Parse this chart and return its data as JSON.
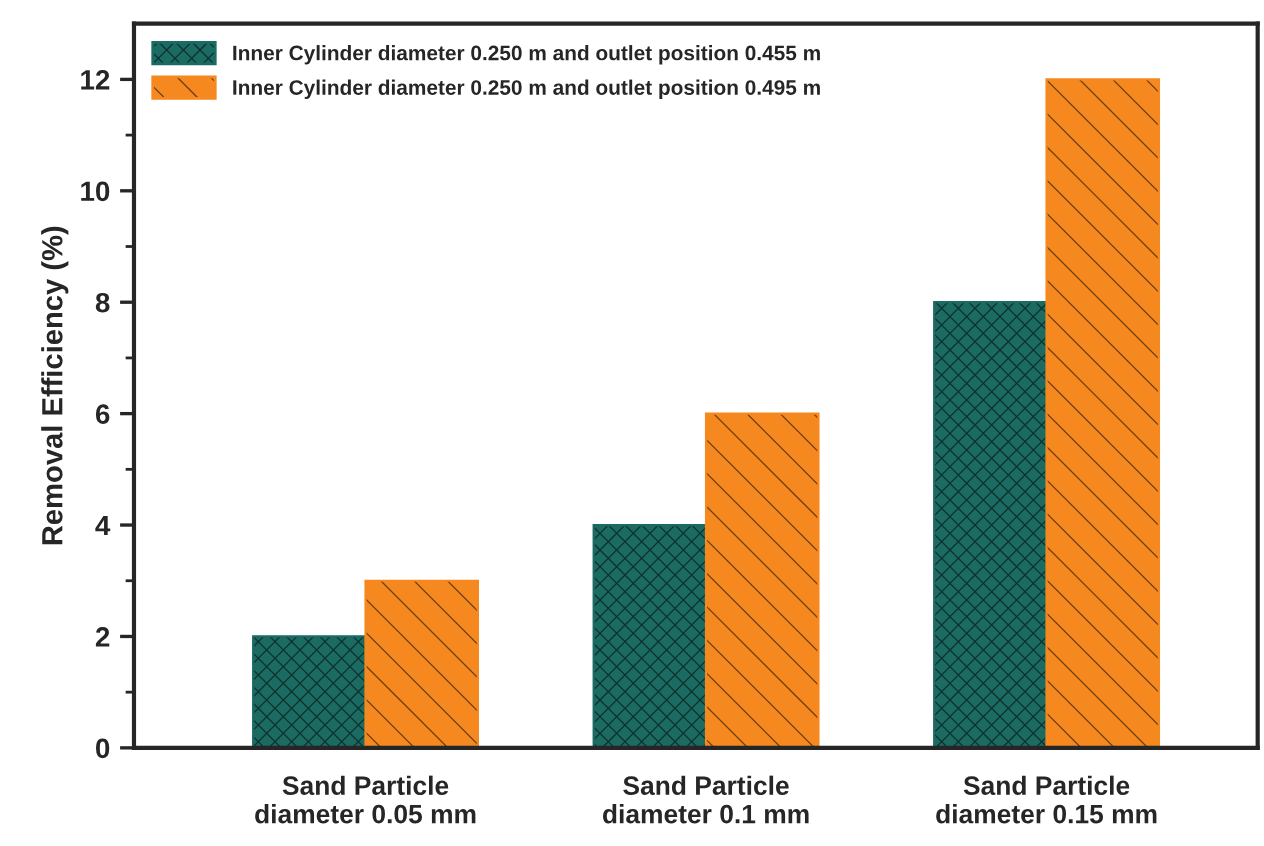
{
  "chart_data": {
    "type": "bar",
    "ylabel": "Removal Efficiency (%)",
    "categories": [
      "Sand Particle\ndiameter 0.05 mm",
      "Sand Particle\ndiameter 0.1 mm",
      "Sand Particle\ndiameter 0.15 mm"
    ],
    "series": [
      {
        "name": "Inner Cylinder diameter 0.250 m and outlet position 0.455 m",
        "color": "#1b6b63",
        "values": [
          2,
          4,
          8
        ]
      },
      {
        "name": "Inner Cylinder diameter 0.250 m and outlet position 0.495 m",
        "color": "#f5891f",
        "values": [
          3,
          6,
          12
        ]
      }
    ],
    "ylim": [
      0,
      13
    ],
    "yticks": [
      0,
      {
        "value": 1,
        "label": null
      },
      2,
      {
        "value": 3,
        "label": null
      },
      4,
      {
        "value": 5,
        "label": null
      },
      6,
      {
        "value": 7,
        "label": null
      },
      8,
      {
        "value": 9,
        "label": null
      },
      10,
      {
        "value": 11,
        "label": null
      },
      12
    ],
    "grid": false,
    "legend": "top left"
  }
}
